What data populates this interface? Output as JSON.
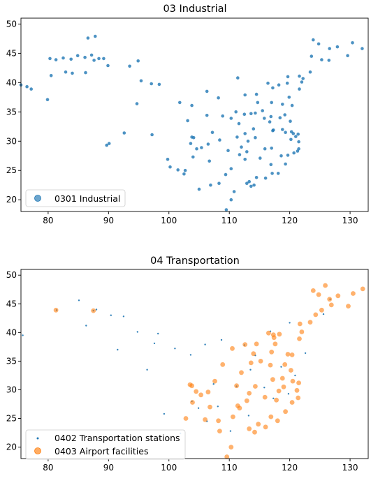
{
  "chart_data": [
    {
      "type": "scatter",
      "title": "03 Industrial",
      "xlabel": "",
      "ylabel": "",
      "xlim": [
        75.5,
        133
      ],
      "ylim": [
        18,
        51
      ],
      "xticks": [
        80,
        90,
        100,
        110,
        120,
        130
      ],
      "yticks": [
        20,
        25,
        30,
        35,
        40,
        45,
        50
      ],
      "grid": false,
      "legend_position": "lower-left",
      "series": [
        {
          "name": "0301 Industrial",
          "color": "#1f77b4",
          "points": [
            [
              75.5,
              39.6
            ],
            [
              76.5,
              39.3
            ],
            [
              77.2,
              38.9
            ],
            [
              79.9,
              37.1
            ],
            [
              80.5,
              41.2
            ],
            [
              82.5,
              44.2
            ],
            [
              83.8,
              44.0
            ],
            [
              84.9,
              44.6
            ],
            [
              86.1,
              44.3
            ],
            [
              87.2,
              44.7
            ],
            [
              87.6,
              43.8
            ],
            [
              88.4,
              44.1
            ],
            [
              89.2,
              44.1
            ],
            [
              86.6,
              47.6
            ],
            [
              87.8,
              47.9
            ],
            [
              86.2,
              41.7
            ],
            [
              84.0,
              41.6
            ],
            [
              82.9,
              41.8
            ],
            [
              81.3,
              43.9
            ],
            [
              80.3,
              44.1
            ],
            [
              89.9,
              42.9
            ],
            [
              93.5,
              42.8
            ],
            [
              94.9,
              43.7
            ],
            [
              95.4,
              40.3
            ],
            [
              97.1,
              39.8
            ],
            [
              98.4,
              39.7
            ],
            [
              94.7,
              36.4
            ],
            [
              90.1,
              29.6
            ],
            [
              89.7,
              29.3
            ],
            [
              92.6,
              31.4
            ],
            [
              97.2,
              31.1
            ],
            [
              99.8,
              26.9
            ],
            [
              100.2,
              25.6
            ],
            [
              101.5,
              25.1
            ],
            [
              102.7,
              25.0
            ],
            [
              103.8,
              30.7
            ],
            [
              104.1,
              30.6
            ],
            [
              103.6,
              29.6
            ],
            [
              104.6,
              28.7
            ],
            [
              105.4,
              28.9
            ],
            [
              106.5,
              29.5
            ],
            [
              106.7,
              26.6
            ],
            [
              108.3,
              22.8
            ],
            [
              109.4,
              24.3
            ],
            [
              110.3,
              25.3
            ],
            [
              110.3,
              20.0
            ],
            [
              109.5,
              18.3
            ],
            [
              110.8,
              21.4
            ],
            [
              112.9,
              22.8
            ],
            [
              113.3,
              23.1
            ],
            [
              114.1,
              22.5
            ],
            [
              113.6,
              22.3
            ],
            [
              114.5,
              23.8
            ],
            [
              115.9,
              28.7
            ],
            [
              116.0,
              23.7
            ],
            [
              117.1,
              24.5
            ],
            [
              118.1,
              24.5
            ],
            [
              119.3,
              26.1
            ],
            [
              119.7,
              27.6
            ],
            [
              120.7,
              28.0
            ],
            [
              121.5,
              28.7
            ],
            [
              121.5,
              29.9
            ],
            [
              121.4,
              31.2
            ],
            [
              120.6,
              31.3
            ],
            [
              120.2,
              30.3
            ],
            [
              118.8,
              32.0
            ],
            [
              117.2,
              31.8
            ],
            [
              114.3,
              30.6
            ],
            [
              112.9,
              28.2
            ],
            [
              112.6,
              26.9
            ],
            [
              111.3,
              30.7
            ],
            [
              108.9,
              34.3
            ],
            [
              106.3,
              34.4
            ],
            [
              103.8,
              36.1
            ],
            [
              101.8,
              36.6
            ],
            [
              106.3,
              38.5
            ],
            [
              108.2,
              37.4
            ],
            [
              111.4,
              40.8
            ],
            [
              112.6,
              37.9
            ],
            [
              114.5,
              38.0
            ],
            [
              116.4,
              39.9
            ],
            [
              117.2,
              39.1
            ],
            [
              118.2,
              39.6
            ],
            [
              119.6,
              39.9
            ],
            [
              121.6,
              38.9
            ],
            [
              123.4,
              41.8
            ],
            [
              121.6,
              41.1
            ],
            [
              122.2,
              40.7
            ],
            [
              125.3,
              43.9
            ],
            [
              126.5,
              43.8
            ],
            [
              126.6,
              45.8
            ],
            [
              124.8,
              46.6
            ],
            [
              127.9,
              46.1
            ],
            [
              129.6,
              44.6
            ],
            [
              130.4,
              46.8
            ],
            [
              132.0,
              45.8
            ],
            [
              123.9,
              47.3
            ],
            [
              117.0,
              36.6
            ],
            [
              118.8,
              36.3
            ],
            [
              120.4,
              36.1
            ],
            [
              119.9,
              37.5
            ],
            [
              115.5,
              35.2
            ],
            [
              113.6,
              34.7
            ],
            [
              114.3,
              34.8
            ],
            [
              112.5,
              34.6
            ],
            [
              116.9,
              34.2
            ],
            [
              118.4,
              34.0
            ],
            [
              119.2,
              34.5
            ],
            [
              117.3,
              31.9
            ],
            [
              115.8,
              33.9
            ],
            [
              111.6,
              33.0
            ],
            [
              110.3,
              33.9
            ],
            [
              107.2,
              31.5
            ],
            [
              104.0,
              27.3
            ],
            [
              102.5,
              24.4
            ],
            [
              106.9,
              22.5
            ],
            [
              105.0,
              21.8
            ],
            [
              113.1,
              30.0
            ],
            [
              114.0,
              32.1
            ],
            [
              120.1,
              33.4
            ],
            [
              121.3,
              28.3
            ],
            [
              118.6,
              27.5
            ],
            [
              116.9,
              26.0
            ],
            [
              115.1,
              27.1
            ],
            [
              117.0,
              28.8
            ],
            [
              119.3,
              31.5
            ],
            [
              120.3,
              31.6
            ],
            [
              122.0,
              40.1
            ],
            [
              121.0,
              30.8
            ],
            [
              114.7,
              36.6
            ],
            [
              116.7,
              33.3
            ],
            [
              111.1,
              35.0
            ],
            [
              112.6,
              31.3
            ],
            [
              112.0,
              29.0
            ],
            [
              109.8,
              28.4
            ],
            [
              103.1,
              33.5
            ],
            [
              108.4,
              30.2
            ],
            [
              111.7,
              27.7
            ],
            [
              119.7,
              41.0
            ],
            [
              123.6,
              44.5
            ]
          ]
        }
      ]
    },
    {
      "type": "scatter",
      "title": "04 Transportation",
      "xlabel": "",
      "ylabel": "",
      "xlim": [
        75.5,
        133
      ],
      "ylim": [
        18,
        51
      ],
      "xticks": [
        80,
        90,
        100,
        110,
        120,
        130
      ],
      "yticks": [
        20,
        25,
        30,
        35,
        40,
        45,
        50
      ],
      "grid": false,
      "legend_position": "lower-left",
      "series": [
        {
          "name": "0402 Transportation stations",
          "color": "#1f77b4",
          "points": [
            [
              75.8,
              39.5
            ],
            [
              81.4,
              43.9
            ],
            [
              85.1,
              45.6
            ],
            [
              87.5,
              43.8
            ],
            [
              90.4,
              43.0
            ],
            [
              92.5,
              42.8
            ],
            [
              94.8,
              40.1
            ],
            [
              97.6,
              38.1
            ],
            [
              98.2,
              39.8
            ],
            [
              101.0,
              37.2
            ],
            [
              103.6,
              36.1
            ],
            [
              106.0,
              37.9
            ],
            [
              108.7,
              38.7
            ],
            [
              112.5,
              37.8
            ],
            [
              114.3,
              36.0
            ],
            [
              116.8,
              40.2
            ],
            [
              120.0,
              41.7
            ],
            [
              122.6,
              36.4
            ],
            [
              125.6,
              43.2
            ],
            [
              126.7,
              45.8
            ],
            [
              113.5,
              33.5
            ],
            [
              115.8,
              30.4
            ],
            [
              117.3,
              28.5
            ],
            [
              119.8,
              29.3
            ],
            [
              108.1,
              27.1
            ],
            [
              106.3,
              24.5
            ],
            [
              110.2,
              22.8
            ],
            [
              101.9,
              22.4
            ],
            [
              99.2,
              25.8
            ],
            [
              103.8,
              28.0
            ],
            [
              111.2,
              30.6
            ],
            [
              118.6,
              34.0
            ],
            [
              120.9,
              32.5
            ],
            [
              113.2,
              25.5
            ],
            [
              107.4,
              31.0
            ],
            [
              86.3,
              41.2
            ],
            [
              88.0,
              44.0
            ],
            [
              91.5,
              37.0
            ],
            [
              96.4,
              33.5
            ],
            [
              104.9,
              26.8
            ]
          ]
        },
        {
          "name": "0403 Airport facilities",
          "color": "#ff7f0e",
          "points": [
            [
              81.3,
              43.9
            ],
            [
              87.5,
              43.8
            ],
            [
              103.8,
              30.7
            ],
            [
              104.5,
              29.7
            ],
            [
              103.9,
              27.8
            ],
            [
              102.8,
              25.0
            ],
            [
              105.3,
              29.1
            ],
            [
              106.5,
              29.6
            ],
            [
              107.6,
              31.5
            ],
            [
              106.8,
              27.0
            ],
            [
              106.0,
              24.8
            ],
            [
              108.4,
              22.8
            ],
            [
              110.3,
              20.0
            ],
            [
              109.6,
              18.3
            ],
            [
              110.6,
              25.3
            ],
            [
              111.4,
              27.2
            ],
            [
              112.9,
              28.1
            ],
            [
              113.3,
              23.2
            ],
            [
              114.2,
              22.6
            ],
            [
              114.8,
              24.0
            ],
            [
              116.0,
              23.5
            ],
            [
              116.9,
              25.3
            ],
            [
              118.0,
              24.6
            ],
            [
              119.3,
              26.2
            ],
            [
              120.4,
              27.8
            ],
            [
              121.4,
              28.6
            ],
            [
              121.5,
              31.2
            ],
            [
              120.5,
              31.5
            ],
            [
              118.8,
              32.0
            ],
            [
              117.2,
              31.8
            ],
            [
              114.3,
              30.6
            ],
            [
              115.9,
              28.7
            ],
            [
              112.0,
              33.0
            ],
            [
              108.9,
              34.4
            ],
            [
              110.5,
              37.2
            ],
            [
              112.6,
              37.9
            ],
            [
              114.5,
              38.0
            ],
            [
              116.5,
              39.9
            ],
            [
              117.4,
              39.1
            ],
            [
              118.3,
              39.7
            ],
            [
              121.6,
              38.9
            ],
            [
              119.7,
              36.2
            ],
            [
              117.0,
              36.6
            ],
            [
              120.4,
              36.1
            ],
            [
              115.2,
              35.0
            ],
            [
              113.6,
              34.7
            ],
            [
              116.8,
              34.3
            ],
            [
              119.2,
              34.4
            ],
            [
              123.4,
              41.8
            ],
            [
              121.7,
              41.5
            ],
            [
              125.3,
              43.9
            ],
            [
              126.6,
              45.8
            ],
            [
              124.8,
              46.6
            ],
            [
              128.0,
              46.4
            ],
            [
              129.7,
              44.6
            ],
            [
              130.5,
              46.8
            ],
            [
              123.9,
              47.3
            ],
            [
              125.9,
              48.2
            ],
            [
              132.1,
              47.6
            ],
            [
              117.6,
              38.0
            ],
            [
              120.2,
              33.4
            ],
            [
              111.2,
              30.7
            ],
            [
              111.7,
              26.8
            ],
            [
              113.3,
              29.4
            ],
            [
              118.2,
              29.8
            ],
            [
              117.8,
              28.2
            ],
            [
              121.2,
              29.9
            ],
            [
              119.0,
              30.5
            ],
            [
              108.2,
              24.6
            ],
            [
              103.5,
              30.9
            ],
            [
              117.3,
              39.6
            ],
            [
              122.0,
              40.1
            ],
            [
              126.9,
              44.8
            ],
            [
              124.3,
              43.1
            ],
            [
              114.0,
              36.3
            ]
          ]
        }
      ]
    }
  ]
}
